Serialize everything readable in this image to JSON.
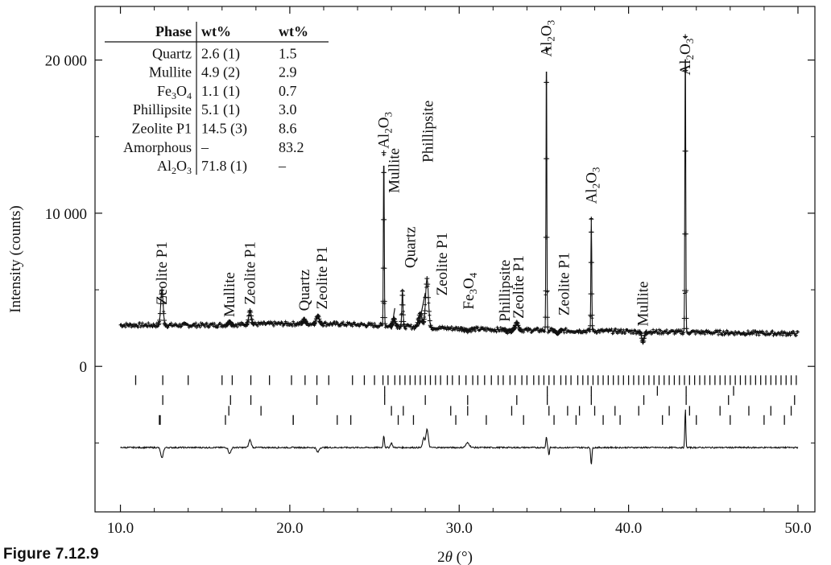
{
  "figure_caption": "Figure 7.12.9",
  "chart_data": {
    "type": "line",
    "xlabel_prefix": "2",
    "xlabel_theta": "θ",
    "xlabel_unit": " (°)",
    "ylabel": "Intensity (counts)",
    "xlim": [
      8.5,
      51
    ],
    "ylim": [
      -9500,
      23500
    ],
    "x_ticks": [
      10.0,
      20.0,
      30.0,
      40.0,
      50.0
    ],
    "x_tick_labels": [
      "10.0",
      "20.0",
      "30.0",
      "40.0",
      "50.0"
    ],
    "y_ticks": [
      0,
      10000,
      20000
    ],
    "y_tick_labels": [
      "0",
      "10 000",
      "20 000"
    ],
    "background_level": 2700,
    "peaks": [
      {
        "x": 12.45,
        "height": 5000,
        "width": 0.1
      },
      {
        "x": 16.45,
        "height": 2900,
        "width": 0.1
      },
      {
        "x": 17.65,
        "height": 3600,
        "width": 0.1
      },
      {
        "x": 20.85,
        "height": 3000,
        "width": 0.08
      },
      {
        "x": 21.65,
        "height": 3200,
        "width": 0.12
      },
      {
        "x": 25.55,
        "height": 14000,
        "width": 0.035
      },
      {
        "x": 26.15,
        "height": 3200,
        "width": 0.1
      },
      {
        "x": 26.65,
        "height": 5000,
        "width": 0.05
      },
      {
        "x": 27.7,
        "height": 3600,
        "width": 0.15
      },
      {
        "x": 28.1,
        "height": 5900,
        "width": 0.12
      },
      {
        "x": 30.5,
        "height": 2600,
        "width": 0.2
      },
      {
        "x": 32.9,
        "height": 2600,
        "width": 0.15
      },
      {
        "x": 33.4,
        "height": 3200,
        "width": 0.12
      },
      {
        "x": 35.15,
        "height": 21000,
        "width": 0.035
      },
      {
        "x": 35.8,
        "height": 2500,
        "width": 0.12
      },
      {
        "x": 37.8,
        "height": 10000,
        "width": 0.035
      },
      {
        "x": 40.85,
        "height": 2000,
        "width": 0.1
      },
      {
        "x": 43.35,
        "height": 22000,
        "width": 0.035
      }
    ],
    "tick_rows": [
      {
        "y": -900,
        "x": [
          10.9,
          12.5,
          14.0,
          16.0,
          16.6,
          17.7,
          18.8,
          20.1,
          20.9,
          21.6,
          22.3,
          23.7,
          24.4,
          25.0,
          25.5,
          25.8,
          26.2,
          26.5,
          26.8,
          27.1,
          27.4,
          27.7,
          28.0,
          28.3,
          28.6,
          28.9,
          29.3,
          29.6,
          30.0,
          30.4,
          30.8,
          31.1,
          31.5,
          31.9,
          32.3,
          32.6,
          33.0,
          33.3,
          33.7,
          34.0,
          34.4,
          34.7,
          35.0,
          35.3,
          35.6,
          36.0,
          36.3,
          36.6,
          37.0,
          37.3,
          37.6,
          37.9,
          38.2,
          38.5,
          38.8,
          39.1,
          39.4,
          39.7,
          40.0,
          40.3,
          40.6,
          40.9,
          41.2,
          41.5,
          41.8,
          42.1,
          42.4,
          42.7,
          43.0,
          43.3,
          43.6,
          43.9,
          44.2,
          44.5,
          44.8,
          45.1,
          45.4,
          45.7,
          46.0,
          46.3,
          46.6,
          46.9,
          47.2,
          47.5,
          47.8,
          48.1,
          48.4,
          48.7,
          49.0,
          49.3,
          49.6,
          49.9
        ]
      },
      {
        "y": -2200,
        "x": [
          12.5,
          16.5,
          17.7,
          21.6,
          25.6,
          28.0,
          30.5,
          33.4,
          35.2,
          37.8,
          40.9,
          43.4,
          45.9,
          49.8
        ]
      },
      {
        "y": -1600,
        "x": [
          25.6,
          35.2,
          37.8,
          41.7,
          43.4,
          46.2
        ]
      },
      {
        "y": -2900,
        "x": [
          16.4,
          18.3,
          26.0,
          26.7,
          29.5,
          30.5,
          33.1,
          35.3,
          36.4,
          37.1,
          38.0,
          39.2,
          40.6,
          42.4,
          43.6,
          45.4,
          47.1,
          48.4,
          49.6
        ]
      },
      {
        "y": -3500,
        "x": [
          12.3,
          16.2,
          20.2,
          22.8,
          23.6,
          26.4,
          27.3,
          29.8,
          31.6,
          33.8,
          35.6,
          36.9,
          38.5,
          39.5,
          42.0,
          44.0,
          46.0,
          48.0,
          49.2
        ]
      }
    ],
    "tick_rows_extra": [
      {
        "y": -3500,
        "x": [
          12.35,
          20.2
        ]
      }
    ],
    "diff_baseline": -5300,
    "diff_features": [
      {
        "x": 12.45,
        "amp": -700,
        "width": 0.1
      },
      {
        "x": 16.45,
        "amp": -400,
        "width": 0.1
      },
      {
        "x": 17.65,
        "amp": 500,
        "width": 0.1
      },
      {
        "x": 21.65,
        "amp": -300,
        "width": 0.1
      },
      {
        "x": 25.55,
        "amp": 800,
        "width": 0.05
      },
      {
        "x": 26.0,
        "amp": 300,
        "width": 0.08
      },
      {
        "x": 28.1,
        "amp": 1200,
        "width": 0.1
      },
      {
        "x": 27.9,
        "amp": 600,
        "width": 0.08
      },
      {
        "x": 30.5,
        "amp": 300,
        "width": 0.15
      },
      {
        "x": 35.15,
        "amp": 700,
        "width": 0.05
      },
      {
        "x": 35.3,
        "amp": -500,
        "width": 0.04
      },
      {
        "x": 37.8,
        "amp": -1100,
        "width": 0.05
      },
      {
        "x": 43.35,
        "amp": 2600,
        "width": 0.04
      }
    ],
    "peak_labels": [
      {
        "text": "Zeolite P1",
        "x": 12.45,
        "y": 3700
      },
      {
        "text": "Mullite",
        "x": 16.45,
        "y": 2900
      },
      {
        "text": "Zeolite P1",
        "x": 17.65,
        "y": 3700
      },
      {
        "text": "Quartz",
        "x": 20.85,
        "y": 3300
      },
      {
        "text": "Zeolite P1",
        "x": 21.9,
        "y": 3400
      },
      {
        "text": "Mullite",
        "x": 26.15,
        "y": 11000
      },
      {
        "text": "Quartz",
        "x": 27.1,
        "y": 6100
      },
      {
        "text": "Phillipsite",
        "x": 28.15,
        "y": 13000
      },
      {
        "text": "Zeolite P1",
        "x": 29.0,
        "y": 4300
      },
      {
        "text": "Fe3O4",
        "x": 30.55,
        "y": 3400
      },
      {
        "text": "Phillipsite",
        "x": 32.7,
        "y": 2600
      },
      {
        "text": "Zeolite P1",
        "x": 33.5,
        "y": 2800
      },
      {
        "text": "Zeolite P1",
        "x": 36.2,
        "y": 3000
      },
      {
        "text": "Mullite",
        "x": 40.85,
        "y": 2300
      }
    ],
    "al2o3_labels": [
      {
        "x": 25.55,
        "y": 14000
      },
      {
        "x": 35.15,
        "y": 20000
      },
      {
        "x": 37.8,
        "y": 10400
      },
      {
        "x": 43.35,
        "y": 18800
      }
    ],
    "arrows": [
      {
        "x_from": 26.2,
        "y_from": 3800,
        "x_to": 26.0,
        "y_to": 2400
      },
      {
        "x_from": 28.0,
        "y_from": 4800,
        "x_to": 27.6,
        "y_to": 2600
      }
    ],
    "table": {
      "headers": [
        "Phase",
        "wt%",
        "wt%"
      ],
      "rows": [
        {
          "phase": "Quartz",
          "sub": "",
          "wt1": "2.6 (1)",
          "wt2": "1.5"
        },
        {
          "phase": "Mullite",
          "sub": "",
          "wt1": "4.9 (2)",
          "wt2": "2.9"
        },
        {
          "phase": "Fe",
          "sub": "Fe3O4",
          "wt1": "1.1 (1)",
          "wt2": "0.7"
        },
        {
          "phase": "Phillipsite",
          "sub": "",
          "wt1": "5.1 (1)",
          "wt2": "3.0"
        },
        {
          "phase": "Zeolite P1",
          "sub": "",
          "wt1": "14.5 (3)",
          "wt2": "8.6"
        },
        {
          "phase": "Amorphous",
          "sub": "",
          "wt1": "–",
          "wt2": "83.2"
        },
        {
          "phase": "Al",
          "sub": "Al2O3",
          "wt1": "71.8 (1)",
          "wt2": "–"
        }
      ]
    }
  }
}
